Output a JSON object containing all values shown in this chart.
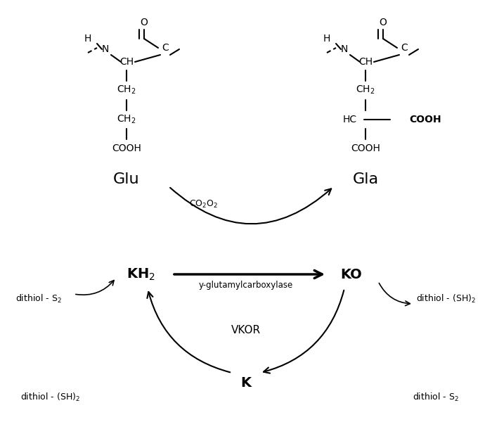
{
  "bg_color": "#ffffff",
  "figsize": [
    7.0,
    6.0
  ],
  "dpi": 100,
  "glu_label": "Glu",
  "gla_label": "Gla",
  "kh2_label": "KH$_2$",
  "ko_label": "KO",
  "k_label": "K",
  "co2o2_label": "CO$_2$O$_2$",
  "enzyme_label": "y-glutamylcarboxylase",
  "vkor_label": "VKOR",
  "dithiol_s2_left_top": "dithiol - S$_2$",
  "dithiol_sh2_left_bot": "dithiol - (SH)$_2$",
  "dithiol_sh2_right_top": "dithiol - (SH)$_2$",
  "dithiol_s2_right_bot": "dithiol - S$_2$"
}
